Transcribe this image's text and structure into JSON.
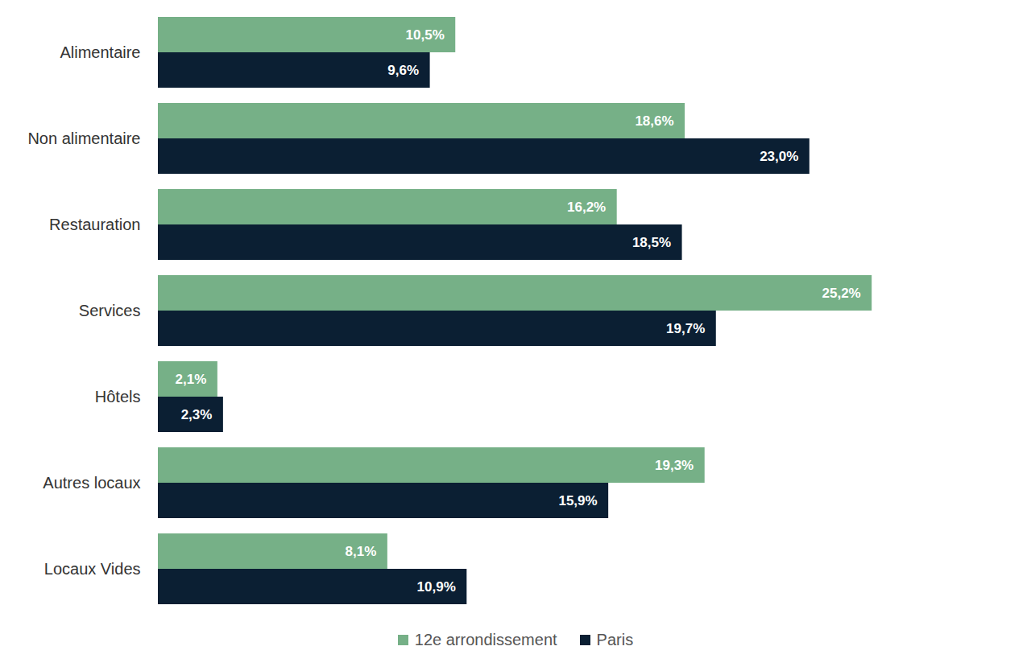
{
  "chart_data": {
    "type": "bar",
    "orientation": "horizontal",
    "categories": [
      "Alimentaire",
      "Non alimentaire",
      "Restauration",
      "Services",
      "Hôtels",
      "Autres locaux",
      "Locaux Vides"
    ],
    "series": [
      {
        "name": "12e arrondissement",
        "color": "#76b087",
        "values": [
          10.5,
          18.6,
          16.2,
          25.2,
          2.1,
          19.3,
          8.1
        ],
        "value_labels": [
          "10,5%",
          "18,6%",
          "16,2%",
          "25,2%",
          "2,1%",
          "19,3%",
          "8,1%"
        ]
      },
      {
        "name": "Paris",
        "color": "#0b1f33",
        "values": [
          9.6,
          23.0,
          18.5,
          19.7,
          2.3,
          15.9,
          10.9
        ],
        "value_labels": [
          "9,6%",
          "23,0%",
          "18,5%",
          "19,7%",
          "2,3%",
          "15,9%",
          "10,9%"
        ]
      }
    ],
    "xlim": [
      0,
      30
    ],
    "data_labels": true,
    "tick_labels": "y",
    "legend": "bottom"
  }
}
